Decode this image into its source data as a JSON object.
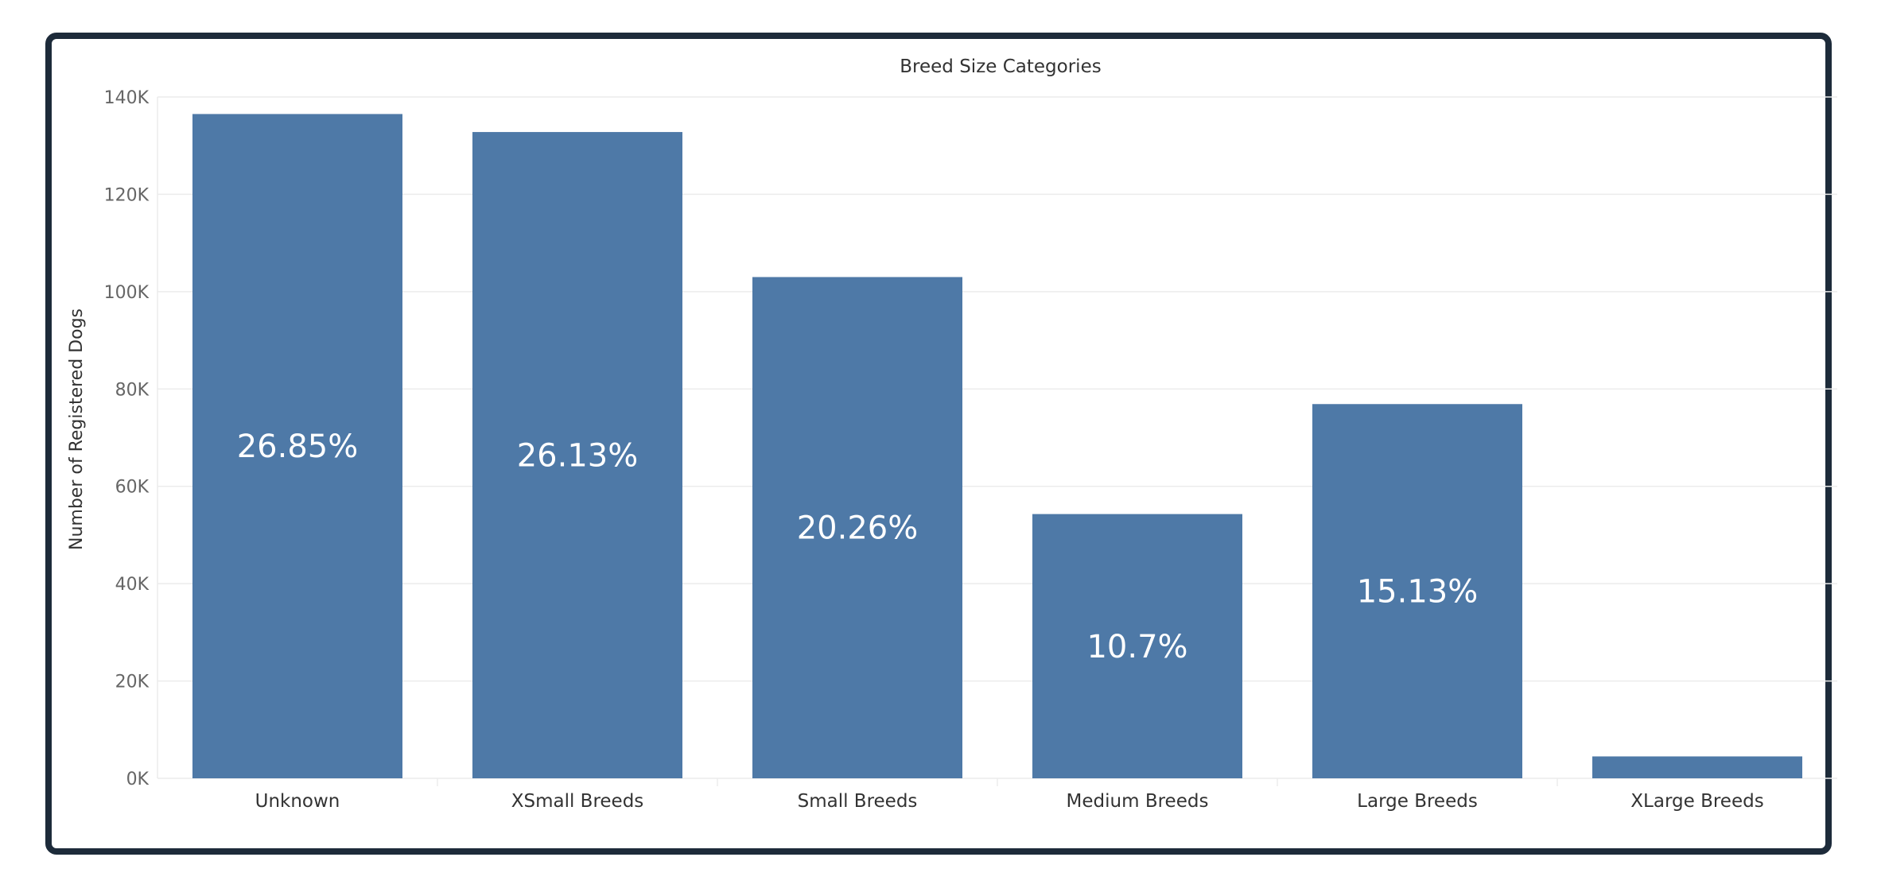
{
  "chart_data": {
    "type": "bar",
    "title": "Breed Size Categories",
    "xlabel": "",
    "ylabel": "Number of Registered Dogs",
    "categories": [
      "Unknown",
      "XSmall Breeds",
      "Small Breeds",
      "Medium Breeds",
      "Large Breeds",
      "XLarge Breeds"
    ],
    "values": [
      136500,
      132800,
      103000,
      54300,
      76900,
      4500
    ],
    "data_labels": [
      "26.85%",
      "26.13%",
      "20.26%",
      "10.7%",
      "15.13%",
      ""
    ],
    "ylim": [
      0,
      140000
    ],
    "yticks": [
      0,
      20000,
      40000,
      60000,
      80000,
      100000,
      120000,
      140000
    ],
    "ytick_labels": [
      "0K",
      "20K",
      "40K",
      "60K",
      "80K",
      "100K",
      "120K",
      "140K"
    ],
    "grid": true,
    "colors": {
      "bar": "#4e79a7",
      "grid": "#ececec",
      "frame": "#1d2b3a",
      "text": "#333333",
      "tick": "#666666",
      "label": "#ffffff"
    }
  }
}
